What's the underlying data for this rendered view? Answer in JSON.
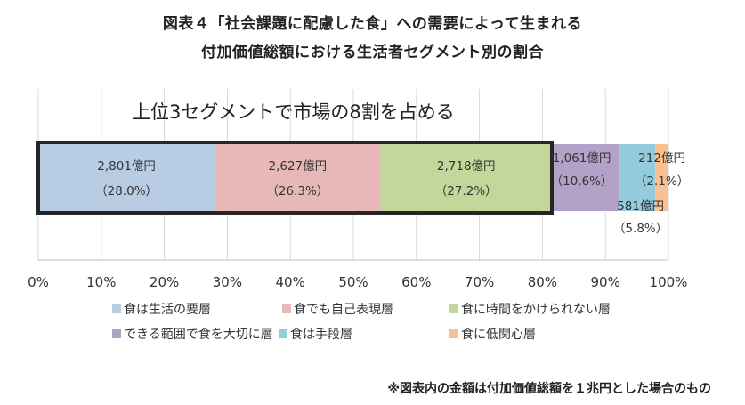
{
  "title_line1": "図表４「社会課題に配慮した食」への需要によって生まれる",
  "title_line2": "付加価値総額における生活者セグメント別の割合",
  "footnote": "※図表内の金額は付加価値総額を１兆円とした場合のもの",
  "chart_data": {
    "type": "bar",
    "orientation": "horizontal-stacked-100",
    "annotation": "上位3セグメントで市場の8割を占める",
    "xlim": [
      0,
      100
    ],
    "x_ticks": [
      "0%",
      "10%",
      "20%",
      "30%",
      "40%",
      "50%",
      "60%",
      "70%",
      "80%",
      "90%",
      "100%"
    ],
    "series": [
      {
        "name": "食は生活の要層",
        "value": 28.0,
        "amount": "2,801億円",
        "pct_label": "（28.0%）",
        "color": "#b8cce4"
      },
      {
        "name": "食でも自己表現層",
        "value": 26.3,
        "amount": "2,627億円",
        "pct_label": "（26.3%）",
        "color": "#e6b9b8"
      },
      {
        "name": "食に時間をかけられない層",
        "value": 27.2,
        "amount": "2,718億円",
        "pct_label": "（27.2%）",
        "color": "#c4d79b"
      },
      {
        "name": "できる範囲で食を大切に層",
        "value": 10.6,
        "amount": "1,061億円",
        "pct_label": "（10.6%）",
        "color": "#b3a2c7"
      },
      {
        "name": "食は手段層",
        "value": 5.8,
        "amount": "581億円",
        "pct_label": "（5.8%）",
        "color": "#93cddd"
      },
      {
        "name": "食に低関心層",
        "value": 2.1,
        "amount": "212億円",
        "pct_label": "（2.1%）",
        "color": "#fac090"
      }
    ],
    "highlight_box_covers_first_n": 3,
    "grid": true,
    "legend_position": "bottom"
  }
}
